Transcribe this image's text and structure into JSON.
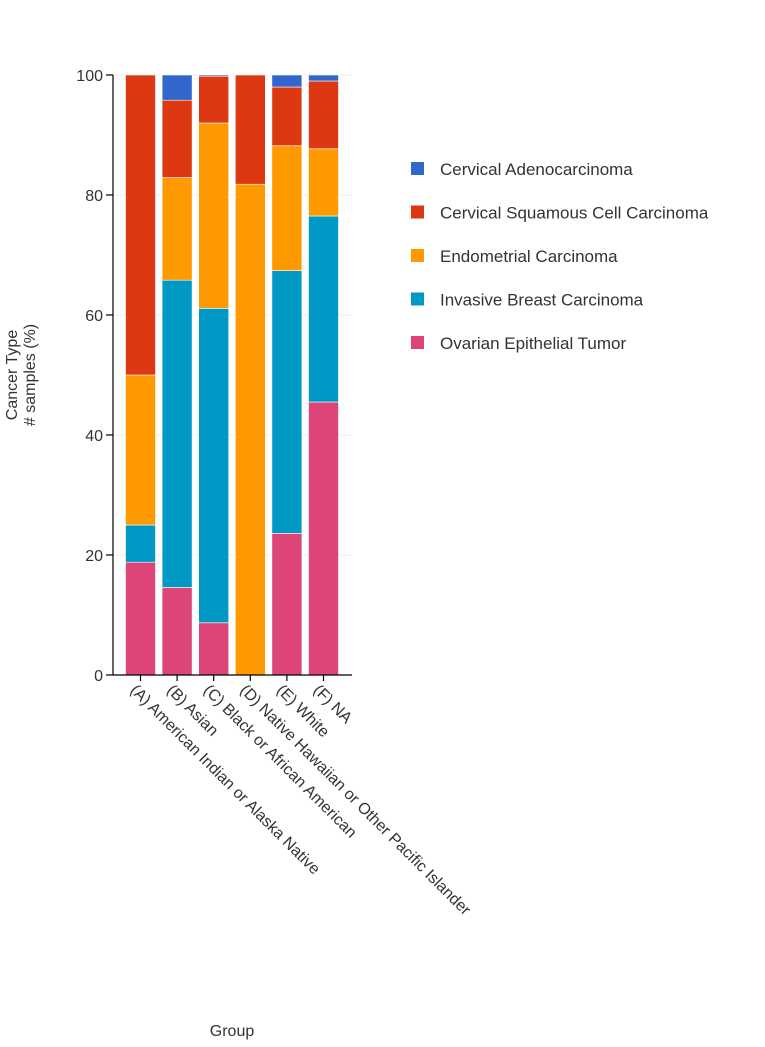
{
  "chart_data": {
    "type": "bar",
    "stacked": true,
    "xlabel": "Group",
    "ylabel_lines": [
      "Cancer Type",
      "# samples (%)"
    ],
    "ylim": [
      0,
      100
    ],
    "yticks": [
      0,
      20,
      40,
      60,
      80,
      100
    ],
    "grid": true,
    "legend_position": "right",
    "categories": [
      "(A) American Indian or Alaska Native",
      "(B) Asian",
      "(C) Black or African American",
      "(D) Native Hawaiian or Other Pacific Islander",
      "(E) White",
      "(F) NA"
    ],
    "series": [
      {
        "name": "Ovarian Epithelial Tumor",
        "color": "#dd4477",
        "values": [
          18.8,
          14.6,
          8.7,
          0,
          23.6,
          45.5
        ]
      },
      {
        "name": "Invasive Breast Carcinoma",
        "color": "#0099c6",
        "values": [
          6.2,
          51.2,
          52.4,
          0,
          43.8,
          31.0
        ]
      },
      {
        "name": "Endometrial Carcinoma",
        "color": "#ff9900",
        "values": [
          25.0,
          17.1,
          30.9,
          81.8,
          20.8,
          11.2
        ]
      },
      {
        "name": "Cervical Squamous Cell Carcinoma",
        "color": "#dc3912",
        "values": [
          50.0,
          12.9,
          7.8,
          18.2,
          9.8,
          11.3
        ]
      },
      {
        "name": "Cervical Adenocarcinoma",
        "color": "#3366cc",
        "values": [
          0,
          4.2,
          0.2,
          0,
          2.0,
          1.0
        ]
      }
    ],
    "legend_order": [
      "Cervical Adenocarcinoma",
      "Cervical Squamous Cell Carcinoma",
      "Endometrial Carcinoma",
      "Invasive Breast Carcinoma",
      "Ovarian Epithelial Tumor"
    ]
  }
}
